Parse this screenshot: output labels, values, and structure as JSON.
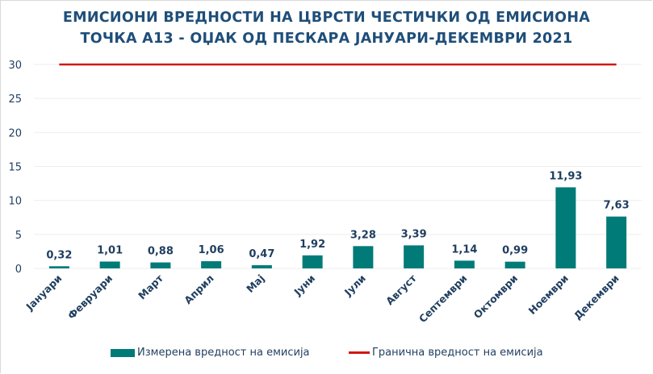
{
  "chart_data": {
    "type": "bar",
    "title_line1": "ЕМИСИОНИ ВРЕДНОСТИ НА ЦВРСТИ ЧЕСТИЧКИ ОД ЕМИСИОНА",
    "title_line2": "ТОЧКА А13 - ОЏАК ОД ПЕСКАРА ЈАНУАРИ-ДЕКЕМВРИ 2021",
    "xlabel": "",
    "ylabel": "",
    "ylim": [
      0,
      30
    ],
    "yticks": [
      "0",
      "5",
      "10",
      "15",
      "20",
      "25",
      "30"
    ],
    "ytick_values": [
      0,
      5,
      10,
      15,
      20,
      25,
      30
    ],
    "grid": true,
    "legend_position": "bottom",
    "categories": [
      "Јануари",
      "Февруари",
      "Март",
      "Април",
      "Мај",
      "Јуни",
      "Јули",
      "Август",
      "Септември",
      "Октомври",
      "Ноември",
      "Декември"
    ],
    "series": [
      {
        "name": "Измерена вредност на емисија",
        "type": "bar",
        "color": "#007b78",
        "values": [
          0.32,
          1.01,
          0.88,
          1.06,
          0.47,
          1.92,
          3.28,
          3.39,
          1.14,
          0.99,
          11.93,
          7.63
        ],
        "labels": [
          "0,32",
          "1,01",
          "0,88",
          "1,06",
          "0,47",
          "1,92",
          "3,28",
          "3,39",
          "1,14",
          "0,99",
          "11,93",
          "7,63"
        ]
      },
      {
        "name": "Гранична вредност на емисија",
        "type": "line",
        "color": "#d21515",
        "values": [
          30,
          30,
          30,
          30,
          30,
          30,
          30,
          30,
          30,
          30,
          30,
          30
        ]
      }
    ]
  },
  "colors": {
    "text": "#1f3e5f",
    "title": "#1f4e79",
    "grid": "#eeeeee"
  }
}
